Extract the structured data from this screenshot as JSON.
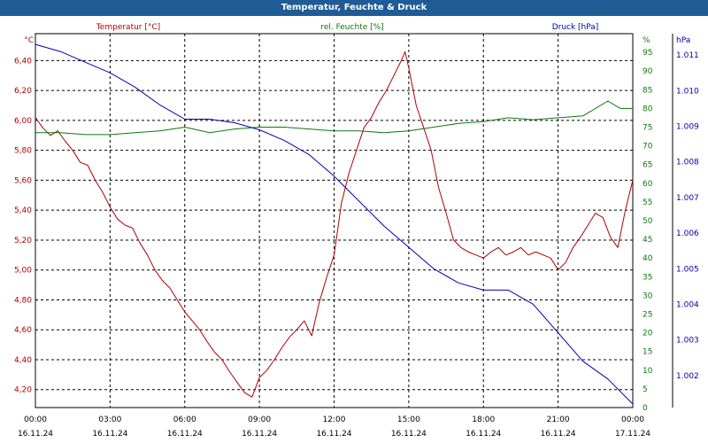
{
  "title": "Temperatur, Feuchte & Druck",
  "colors": {
    "temperature": "#b00000",
    "humidity": "#0a7a0a",
    "pressure": "#0000b0",
    "title_bg": "#1f5b94",
    "grid": "#000000"
  },
  "chart_data": {
    "type": "line",
    "grid": true,
    "x_ticks": [
      {
        "time": "00:00",
        "date": "16.11.24"
      },
      {
        "time": "03:00",
        "date": "16.11.24"
      },
      {
        "time": "06:00",
        "date": "16.11.24"
      },
      {
        "time": "09:00",
        "date": "16.11.24"
      },
      {
        "time": "12:00",
        "date": "16.11.24"
      },
      {
        "time": "15:00",
        "date": "16.11.24"
      },
      {
        "time": "18:00",
        "date": "16.11.24"
      },
      {
        "time": "21:00",
        "date": "16.11.24"
      },
      {
        "time": "00:00",
        "date": "17.11.24"
      }
    ],
    "x_range_hours": [
      0,
      24
    ],
    "axes": {
      "temperature": {
        "header": "Temperatur [°C]",
        "unit": "°C",
        "range": [
          4.08,
          6.58
        ],
        "ticks": [
          "6,40",
          "6,20",
          "6,00",
          "5,80",
          "5,60",
          "5,40",
          "5,20",
          "5,00",
          "4,80",
          "4,60",
          "4,40",
          "4,20"
        ]
      },
      "humidity": {
        "header": "rel. Feuchte [%]",
        "unit": "%",
        "range": [
          0,
          100
        ],
        "ticks": [
          "100",
          "95",
          "90",
          "85",
          "80",
          "75",
          "70",
          "65",
          "60",
          "55",
          "50",
          "45",
          "40",
          "35",
          "30",
          "25",
          "20",
          "15",
          "10",
          "5",
          "0"
        ]
      },
      "pressure": {
        "header": "Druck [hPa]",
        "unit": "hPa",
        "range": [
          1.0011,
          1.0116
        ],
        "ticks": [
          "1.011",
          "1.010",
          "1.009",
          "1.008",
          "1.007",
          "1.006",
          "1.005",
          "1.004",
          "1.003",
          "1.002"
        ]
      }
    },
    "series": [
      {
        "name": "Temperatur [°C]",
        "axis": "temperature",
        "x": [
          0,
          0.3,
          0.6,
          0.9,
          1.2,
          1.5,
          1.8,
          2.1,
          2.4,
          2.7,
          3.0,
          3.3,
          3.6,
          3.9,
          4.2,
          4.5,
          4.8,
          5.1,
          5.4,
          5.7,
          6.0,
          6.3,
          6.6,
          6.9,
          7.2,
          7.5,
          7.8,
          8.1,
          8.4,
          8.7,
          9.0,
          9.3,
          9.6,
          9.9,
          10.2,
          10.5,
          10.8,
          11.1,
          11.4,
          11.7,
          12.0,
          12.3,
          12.6,
          12.9,
          13.2,
          13.5,
          13.8,
          14.1,
          14.4,
          14.7,
          14.85,
          15.0,
          15.3,
          15.6,
          15.9,
          16.2,
          16.5,
          16.8,
          17.1,
          17.4,
          17.7,
          18.0,
          18.3,
          18.6,
          18.9,
          19.2,
          19.5,
          19.8,
          20.1,
          20.4,
          20.7,
          21.0,
          21.3,
          21.6,
          21.9,
          22.2,
          22.5,
          22.8,
          23.1,
          23.4,
          23.7,
          24.0
        ],
        "values": [
          6.02,
          5.95,
          5.9,
          5.93,
          5.86,
          5.8,
          5.72,
          5.7,
          5.6,
          5.52,
          5.42,
          5.34,
          5.3,
          5.28,
          5.18,
          5.1,
          5.0,
          4.93,
          4.88,
          4.8,
          4.72,
          4.66,
          4.6,
          4.52,
          4.45,
          4.4,
          4.32,
          4.25,
          4.18,
          4.15,
          4.28,
          4.33,
          4.4,
          4.48,
          4.55,
          4.6,
          4.66,
          4.56,
          4.78,
          4.95,
          5.1,
          5.45,
          5.65,
          5.8,
          5.95,
          6.02,
          6.12,
          6.2,
          6.3,
          6.4,
          6.46,
          6.35,
          6.1,
          5.95,
          5.8,
          5.55,
          5.38,
          5.2,
          5.15,
          5.12,
          5.1,
          5.08,
          5.12,
          5.15,
          5.1,
          5.12,
          5.15,
          5.1,
          5.12,
          5.1,
          5.08,
          5.0,
          5.05,
          5.15,
          5.22,
          5.3,
          5.38,
          5.35,
          5.22,
          5.15,
          5.4,
          5.6
        ],
        "color": "#b00000"
      },
      {
        "name": "rel. Feuchte [%]",
        "axis": "humidity",
        "x": [
          0,
          1,
          2,
          3,
          4,
          5,
          6,
          7,
          8,
          9,
          10,
          11,
          12,
          13,
          14,
          15,
          16,
          17,
          18,
          19,
          20,
          21,
          22,
          23,
          23.5,
          24
        ],
        "values": [
          73.5,
          73.5,
          73,
          73,
          73.5,
          74,
          75,
          73.5,
          74.5,
          75,
          75,
          74.5,
          74,
          74,
          73.5,
          74,
          75,
          76,
          76.5,
          77.5,
          77,
          77.5,
          78,
          82,
          80,
          80
        ],
        "color": "#0a7a0a"
      },
      {
        "name": "Druck [hPa]",
        "axis": "pressure",
        "x": [
          0,
          1,
          2,
          3,
          4,
          5,
          6,
          7,
          8,
          9,
          10,
          11,
          12,
          13,
          14,
          15,
          16,
          17,
          18,
          19,
          20,
          21,
          22,
          23,
          24
        ],
        "values": [
          1.0113,
          1.0111,
          1.0108,
          1.0105,
          1.0101,
          1.0096,
          1.0092,
          1.0092,
          1.0091,
          1.0089,
          1.0086,
          1.0082,
          1.0076,
          1.0069,
          1.0062,
          1.0056,
          1.005,
          1.0046,
          1.0044,
          1.0044,
          1.004,
          1.0032,
          1.0024,
          1.0019,
          1.0012
        ],
        "color": "#0000b0"
      }
    ]
  }
}
